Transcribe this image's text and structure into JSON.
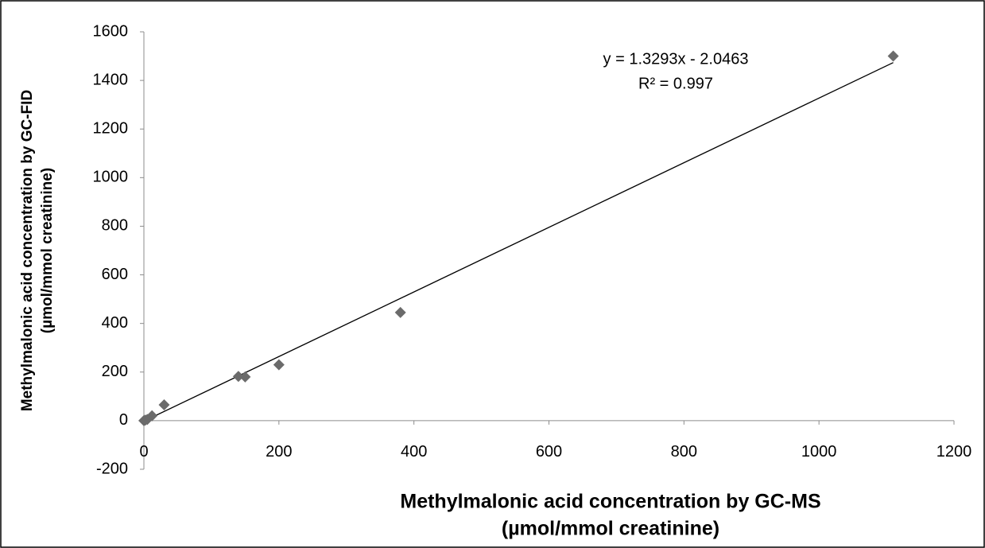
{
  "chart_data": {
    "type": "scatter",
    "xlabel": [
      "Methylmalonic acid concentration by GC-MS",
      "(µmol/mmol creatinine)"
    ],
    "ylabel": [
      "Methylmalonic acid concentration by GC-FID",
      "(µmol/mmol creatinine)"
    ],
    "x": [
      0,
      2,
      5,
      12,
      30,
      140,
      150,
      200,
      380,
      1110
    ],
    "series": [
      {
        "color": "#6b6b6b",
        "values": [
          0,
          2,
          5,
          20,
          65,
          182,
          180,
          230,
          445,
          1500
        ]
      }
    ],
    "xlim": [
      0,
      1200
    ],
    "xticks": [
      0,
      200,
      400,
      600,
      800,
      1000,
      1200
    ],
    "ylim": [
      -200,
      1600
    ],
    "yticks": [
      -200,
      0,
      200,
      400,
      600,
      800,
      1000,
      1200,
      1400,
      1600
    ],
    "trendline": {
      "slope": 1.3293,
      "intercept": -2.0463,
      "equation": "y = 1.3293x - 2.0463",
      "r2": "R² = 0.997"
    }
  }
}
